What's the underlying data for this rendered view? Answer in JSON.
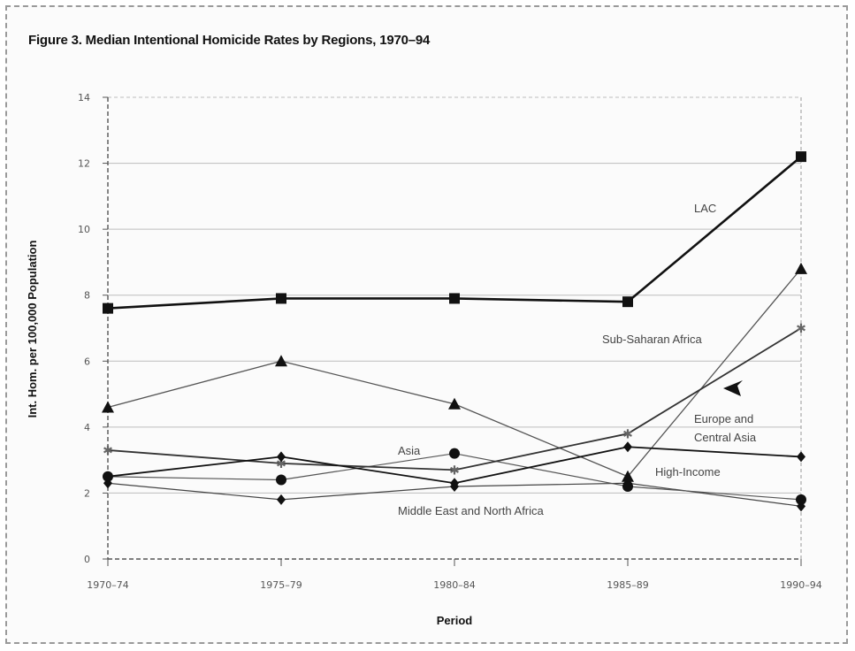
{
  "chart_data": {
    "type": "line",
    "title": "Figure 3. Median Intentional Homicide Rates by Regions, 1970–94",
    "xlabel": "Period",
    "ylabel": "Int. Hom. per 100,000 Population",
    "categories": [
      "1970–74",
      "1975–79",
      "1980–84",
      "1985–89",
      "1990–94"
    ],
    "ylim": [
      0,
      14
    ],
    "yticks": [
      0,
      2,
      4,
      6,
      8,
      10,
      12,
      14
    ],
    "grid": true,
    "series": [
      {
        "name": "LAC",
        "marker": "square",
        "values": [
          7.6,
          7.9,
          7.9,
          7.8,
          12.2
        ],
        "color": "#111111",
        "width": 2.6
      },
      {
        "name": "Sub-Saharan Africa",
        "marker": "triangle",
        "values": [
          4.6,
          6.0,
          4.7,
          2.5,
          8.8
        ],
        "color": "#555555",
        "width": 1.3
      },
      {
        "name": "Europe and Central Asia",
        "marker": "star",
        "values": [
          3.3,
          2.9,
          2.7,
          3.8,
          7.0
        ],
        "color": "#333333",
        "width": 1.8
      },
      {
        "name": "Asia",
        "marker": "circle",
        "values": [
          2.5,
          2.4,
          3.2,
          2.2,
          1.8
        ],
        "color": "#555555",
        "width": 1.2
      },
      {
        "name": "High-Income",
        "marker": "diamond",
        "values": [
          2.5,
          3.1,
          2.3,
          3.4,
          3.1
        ],
        "color": "#111111",
        "width": 1.8
      },
      {
        "name": "Middle East and North Africa",
        "marker": "diamond",
        "values": [
          2.3,
          1.8,
          2.2,
          2.3,
          1.6
        ],
        "color": "#444444",
        "width": 1.2
      }
    ],
    "annotations": [
      {
        "text": "LAC"
      },
      {
        "text": "Sub-Saharan Africa"
      },
      {
        "text": "Europe and"
      },
      {
        "text": "Central Asia"
      },
      {
        "text": "Asia"
      },
      {
        "text": "High-Income"
      },
      {
        "text": "Middle East and North Africa"
      }
    ]
  }
}
